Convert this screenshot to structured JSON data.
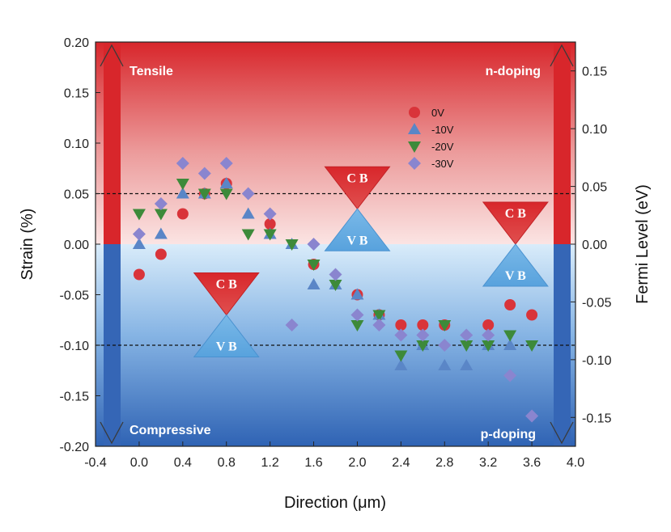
{
  "chart_data": {
    "type": "scatter",
    "xlabel": "Direction (μm)",
    "ylabel": "Strain (%)",
    "y2label": "Fermi Level  (eV)",
    "xlim": [
      -0.4,
      4.0
    ],
    "ylim": [
      -0.2,
      0.2
    ],
    "y2lim": [
      -0.175,
      0.175
    ],
    "xticks": [
      "-0.4",
      "0.0",
      "0.4",
      "0.8",
      "1.2",
      "1.6",
      "2.0",
      "2.4",
      "2.8",
      "3.2",
      "3.6",
      "4.0"
    ],
    "yticks": [
      "-0.20",
      "-0.15",
      "-0.10",
      "-0.05",
      "0.00",
      "0.05",
      "0.10",
      "0.15",
      "0.20"
    ],
    "y2ticks": [
      "-0.15",
      "-0.10",
      "-0.05",
      "0.00",
      "0.05",
      "0.10",
      "0.15"
    ],
    "dashed_lines_y": [
      0.05,
      -0.1
    ],
    "region_labels": {
      "top_left": "Tensile",
      "top_right": "n-doping",
      "bottom_left": "Compressive",
      "bottom_right": "p-doping"
    },
    "band_labels": {
      "cb": "C B",
      "vb": "V B"
    },
    "band_diagrams": [
      {
        "x": 0.8,
        "cone_meet": -0.07
      },
      {
        "x": 2.0,
        "cone_meet": 0.035
      },
      {
        "x": 3.45,
        "cone_meet": 0.0
      }
    ],
    "series": [
      {
        "name": "0V",
        "marker": "circle",
        "color": "#d9343a",
        "x": [
          0.0,
          0.2,
          0.4,
          0.6,
          0.8,
          1.2,
          1.6,
          2.0,
          2.2,
          2.4,
          2.6,
          2.8,
          3.2,
          3.4,
          3.6
        ],
        "y": [
          -0.03,
          -0.01,
          0.03,
          0.05,
          0.06,
          0.02,
          -0.02,
          -0.05,
          -0.07,
          -0.08,
          -0.08,
          -0.08,
          -0.08,
          -0.06,
          -0.07
        ]
      },
      {
        "name": "-10V",
        "marker": "triangle-up",
        "color": "#5a86c7",
        "x": [
          0.0,
          0.2,
          0.4,
          0.6,
          0.8,
          1.0,
          1.2,
          1.4,
          1.6,
          1.8,
          2.0,
          2.2,
          2.4,
          2.6,
          2.8,
          3.0,
          3.2,
          3.4
        ],
        "y": [
          0.0,
          0.01,
          0.05,
          0.05,
          0.06,
          0.03,
          0.01,
          0.0,
          -0.04,
          -0.04,
          -0.05,
          -0.07,
          -0.12,
          -0.1,
          -0.12,
          -0.12,
          -0.1,
          -0.1
        ]
      },
      {
        "name": "-20V",
        "marker": "triangle-down",
        "color": "#3d8a3a",
        "x": [
          0.0,
          0.2,
          0.4,
          0.6,
          0.8,
          1.0,
          1.2,
          1.4,
          1.6,
          1.8,
          2.0,
          2.2,
          2.4,
          2.6,
          2.8,
          3.0,
          3.2,
          3.4,
          3.6
        ],
        "y": [
          0.03,
          0.03,
          0.06,
          0.05,
          0.05,
          0.01,
          0.01,
          0.0,
          -0.02,
          -0.04,
          -0.08,
          -0.07,
          -0.11,
          -0.1,
          -0.08,
          -0.1,
          -0.1,
          -0.09,
          -0.1
        ]
      },
      {
        "name": "-30V",
        "marker": "diamond",
        "color": "#8a85cf",
        "x": [
          0.0,
          0.2,
          0.4,
          0.6,
          0.8,
          1.0,
          1.2,
          1.4,
          1.6,
          1.8,
          2.0,
          2.2,
          2.4,
          2.6,
          2.8,
          3.0,
          3.2,
          3.4,
          3.6
        ],
        "y": [
          0.01,
          0.04,
          0.08,
          0.07,
          0.08,
          0.05,
          0.03,
          -0.08,
          0.0,
          -0.03,
          -0.07,
          -0.08,
          -0.09,
          -0.09,
          -0.1,
          -0.09,
          -0.09,
          -0.13,
          -0.17
        ]
      }
    ]
  }
}
